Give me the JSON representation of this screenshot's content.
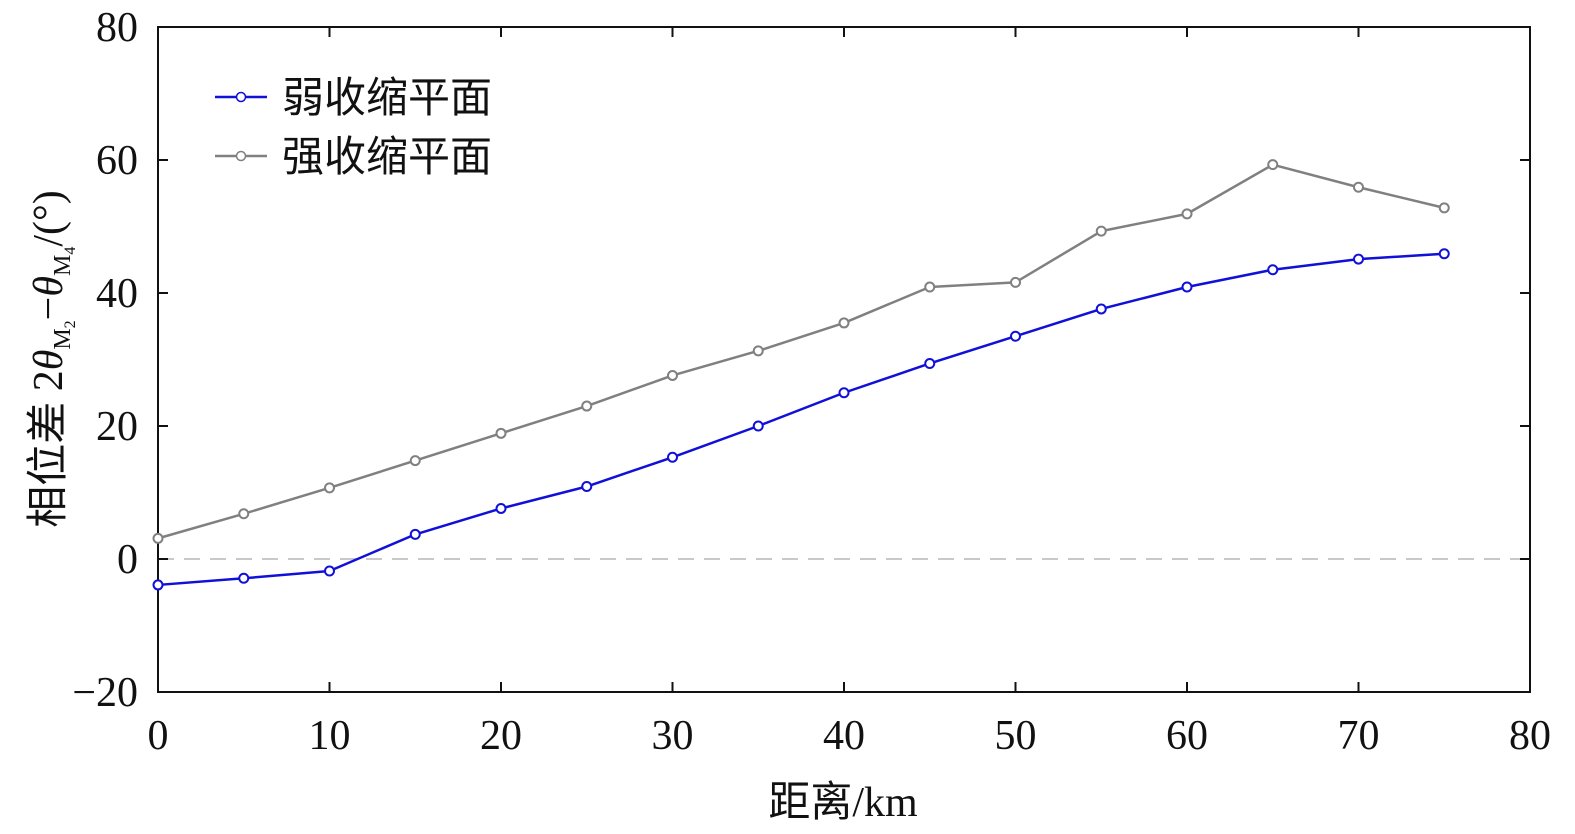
{
  "chart_data": {
    "type": "line",
    "x": [
      0,
      5,
      10,
      15,
      20,
      25,
      30,
      35,
      40,
      45,
      50,
      55,
      60,
      65,
      70,
      75
    ],
    "series": [
      {
        "name": "弱收缩平面",
        "color": "#1010d8",
        "values": [
          -3.9,
          -2.9,
          -1.8,
          3.7,
          7.6,
          10.9,
          15.3,
          20.0,
          25.0,
          29.4,
          33.5,
          37.6,
          40.9,
          43.5,
          45.1,
          45.9
        ]
      },
      {
        "name": "强收缩平面",
        "color": "#808080",
        "values": [
          3.1,
          6.8,
          10.7,
          14.8,
          18.9,
          23.0,
          27.6,
          31.3,
          35.5,
          40.9,
          41.6,
          49.3,
          51.9,
          59.3,
          55.9,
          52.8
        ]
      }
    ],
    "xlabel": "距离/km",
    "ylabel": {
      "prefix": "相位差 2",
      "theta": "θ",
      "sub1": "M",
      "sub1_index": "2",
      "minus": "−",
      "sub2": "M",
      "sub2_index": "4",
      "suffix": "/(°)"
    },
    "xlim": [
      0,
      80
    ],
    "ylim": [
      -20,
      80
    ],
    "xticks": [
      0,
      10,
      20,
      30,
      40,
      50,
      60,
      70,
      80
    ],
    "yticks": [
      -20,
      0,
      20,
      40,
      60,
      80
    ],
    "xtick_labels": [
      "0",
      "10",
      "20",
      "30",
      "40",
      "50",
      "60",
      "70",
      "80"
    ],
    "ytick_labels": [
      "−20",
      "0",
      "20",
      "40",
      "60",
      "80"
    ],
    "reference_line": {
      "y": 0,
      "style": "dashed",
      "color": "#c8c8c8"
    },
    "grid": false,
    "legend_position": "top-left"
  }
}
